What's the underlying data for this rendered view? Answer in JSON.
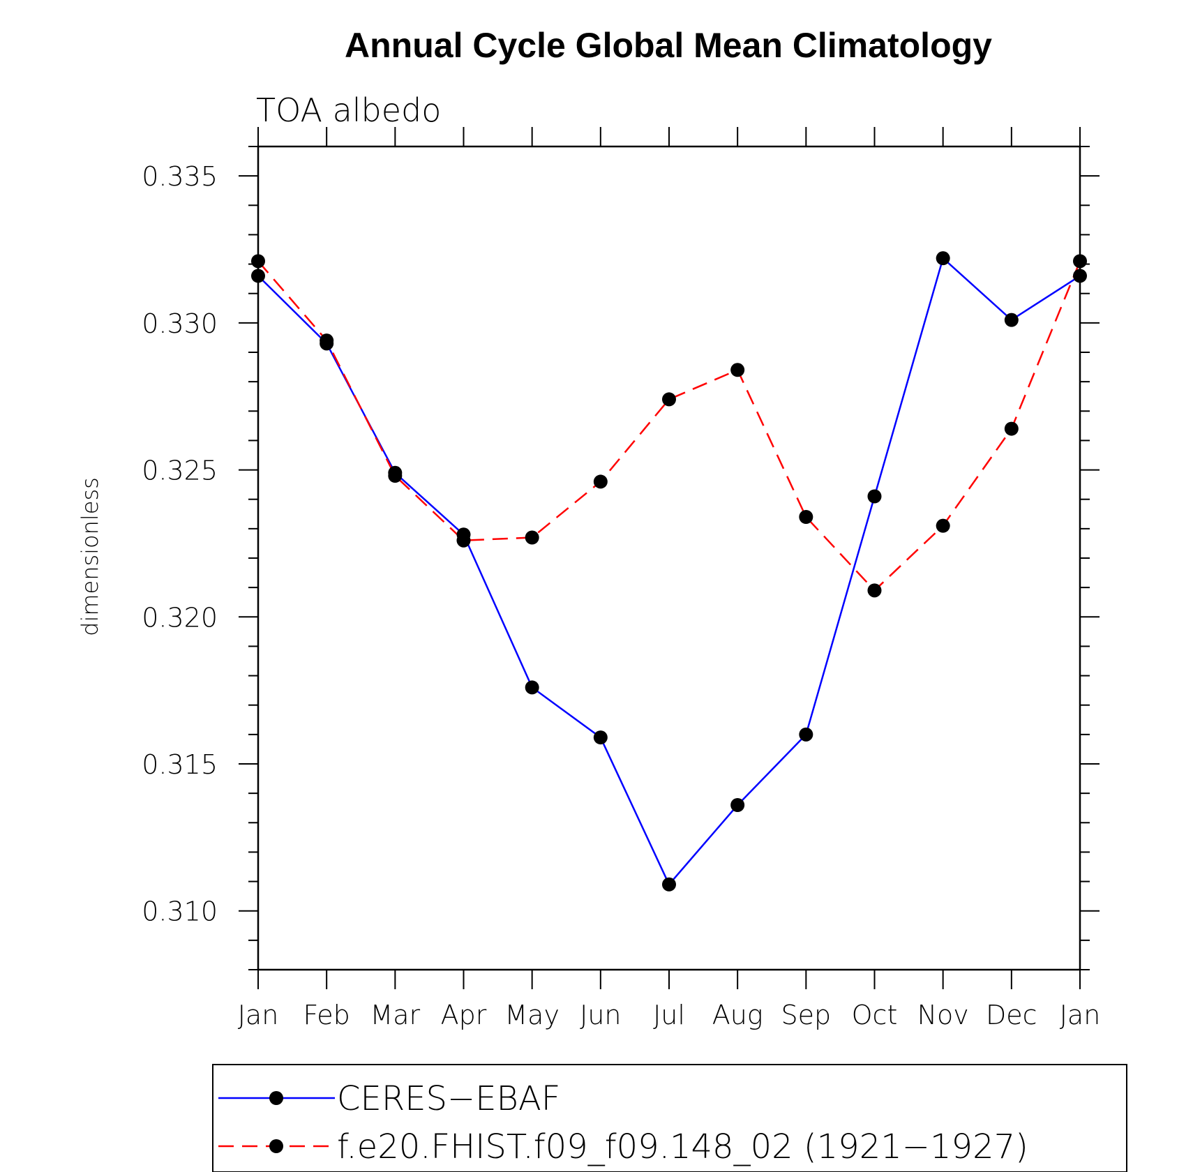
{
  "chart_data": {
    "type": "line",
    "title": "Annual Cycle Global Mean Climatology",
    "subtitle": "TOA albedo",
    "xlabel": "",
    "ylabel": "dimensionless",
    "categories": [
      "Jan",
      "Feb",
      "Mar",
      "Apr",
      "May",
      "Jun",
      "Jul",
      "Aug",
      "Sep",
      "Oct",
      "Nov",
      "Dec",
      "Jan"
    ],
    "ylim": [
      0.308,
      0.336
    ],
    "yticks": [
      "0.310",
      "0.315",
      "0.320",
      "0.325",
      "0.330",
      "0.335"
    ],
    "grid": false,
    "legend_position": "bottom",
    "series": [
      {
        "name": "CERES−EBAF",
        "color": "#0000ff",
        "line_style": "solid",
        "marker": "filled-circle",
        "values": [
          0.3316,
          0.3293,
          0.3249,
          0.3228,
          0.3176,
          0.3159,
          0.3109,
          0.3136,
          0.316,
          0.3241,
          0.3322,
          0.3301,
          0.3316
        ]
      },
      {
        "name": "f.e20.FHIST.f09_f09.148_02 (1921−1927)",
        "color": "#ff0000",
        "line_style": "dashed",
        "marker": "filled-circle",
        "values": [
          0.3321,
          0.3294,
          0.3248,
          0.3226,
          0.3227,
          0.3246,
          0.3274,
          0.3284,
          0.3234,
          0.3209,
          0.3231,
          0.3264,
          0.3321
        ]
      }
    ]
  }
}
